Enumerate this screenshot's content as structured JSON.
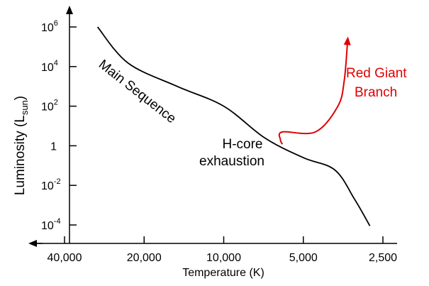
{
  "chart_data": {
    "type": "line",
    "xlabel": "Temperature (K)",
    "ylabel": {
      "main": "Luminosity (L",
      "sub": "sun",
      "close": ")"
    },
    "x_scale": "log, reversed (hot on left)",
    "y_scale": "log",
    "xlim": [
      40000,
      2500
    ],
    "ylim": [
      3e-05,
      3000000
    ],
    "x_ticks": [
      {
        "value": 40000,
        "label": "40,000"
      },
      {
        "value": 20000,
        "label": "20,000"
      },
      {
        "value": 10000,
        "label": "10,000"
      },
      {
        "value": 5000,
        "label": "5,000"
      },
      {
        "value": 2500,
        "label": "2,500"
      }
    ],
    "y_ticks": [
      {
        "value": 1000000,
        "base": "10",
        "exp": "6"
      },
      {
        "value": 10000,
        "base": "10",
        "exp": "4"
      },
      {
        "value": 100,
        "base": "10",
        "exp": "2"
      },
      {
        "value": 1,
        "base": "1",
        "exp": ""
      },
      {
        "value": 0.01,
        "base": "10",
        "exp": "-2"
      },
      {
        "value": 0.0001,
        "base": "10",
        "exp": "-4"
      }
    ],
    "series": [
      {
        "name": "Main Sequence",
        "color": "#000000",
        "points": [
          [
            30000,
            1000000
          ],
          [
            23000,
            15000
          ],
          [
            15000,
            1000
          ],
          [
            10000,
            100
          ],
          [
            7000,
            2.5
          ],
          [
            5000,
            0.25
          ],
          [
            3800,
            0.06
          ],
          [
            3200,
            0.002
          ],
          [
            2800,
            9e-05
          ]
        ]
      },
      {
        "name": "Red Giant Branch",
        "color": "#e00000",
        "points": [
          [
            6000,
            1.2
          ],
          [
            6100,
            2
          ],
          [
            6000,
            5
          ],
          [
            4500,
            5
          ],
          [
            3700,
            100
          ],
          [
            3500,
            2000
          ],
          [
            3400,
            200000
          ]
        ]
      }
    ],
    "annotations": [
      {
        "text": "Main Sequence",
        "color": "#000000"
      },
      {
        "text": "H-core",
        "color": "#000000"
      },
      {
        "text": "exhaustion",
        "color": "#000000"
      },
      {
        "text": "Red Giant",
        "color": "#e00000"
      },
      {
        "text": "Branch",
        "color": "#e00000"
      }
    ],
    "grid": false,
    "legend": "none"
  }
}
